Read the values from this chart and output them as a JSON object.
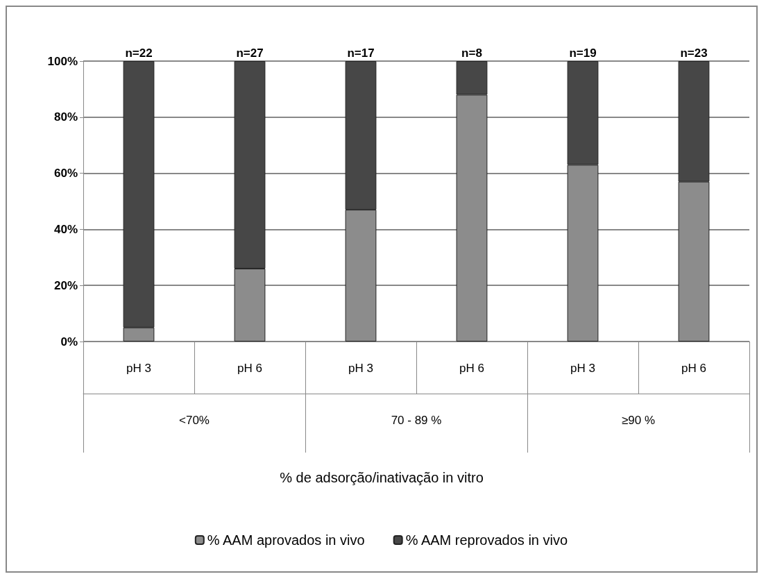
{
  "chart_data": {
    "type": "bar",
    "stacked": true,
    "categories": [
      "pH 3",
      "pH 6",
      "pH 3",
      "pH 6",
      "pH 3",
      "pH 6"
    ],
    "series": [
      {
        "name": "% AAM aprovados in vivo",
        "color": "#8c8c8c",
        "values": [
          5,
          26,
          47,
          88,
          63,
          57
        ]
      },
      {
        "name": "% AAM reprovados in vivo",
        "color": "#474747",
        "values": [
          95,
          74,
          53,
          12,
          37,
          43
        ]
      }
    ],
    "annotations": [
      "<70%",
      "70 - 89 %",
      "≥90 %",
      {
        "text": "n=22",
        "y": 100
      },
      {
        "text": "n=27",
        "y": 100
      },
      {
        "text": "n=17",
        "y": 100
      },
      {
        "text": "n=8",
        "y": 100
      },
      {
        "text": "n=19",
        "y": 100
      },
      {
        "text": "n=23",
        "y": 100
      },
      {
        "text": "% de adsorção/inativação in vitro"
      }
    ],
    "ylim": [
      0,
      100
    ],
    "yticks": [
      {
        "value": 0,
        "label": "0%"
      },
      {
        "value": 20,
        "label": "20%"
      },
      {
        "value": 40,
        "label": "40%"
      },
      {
        "value": 60,
        "label": "60%"
      },
      {
        "value": 80,
        "label": "80%"
      },
      {
        "value": 100,
        "label": "100%"
      }
    ],
    "grid": "y",
    "legend": "bottom"
  }
}
